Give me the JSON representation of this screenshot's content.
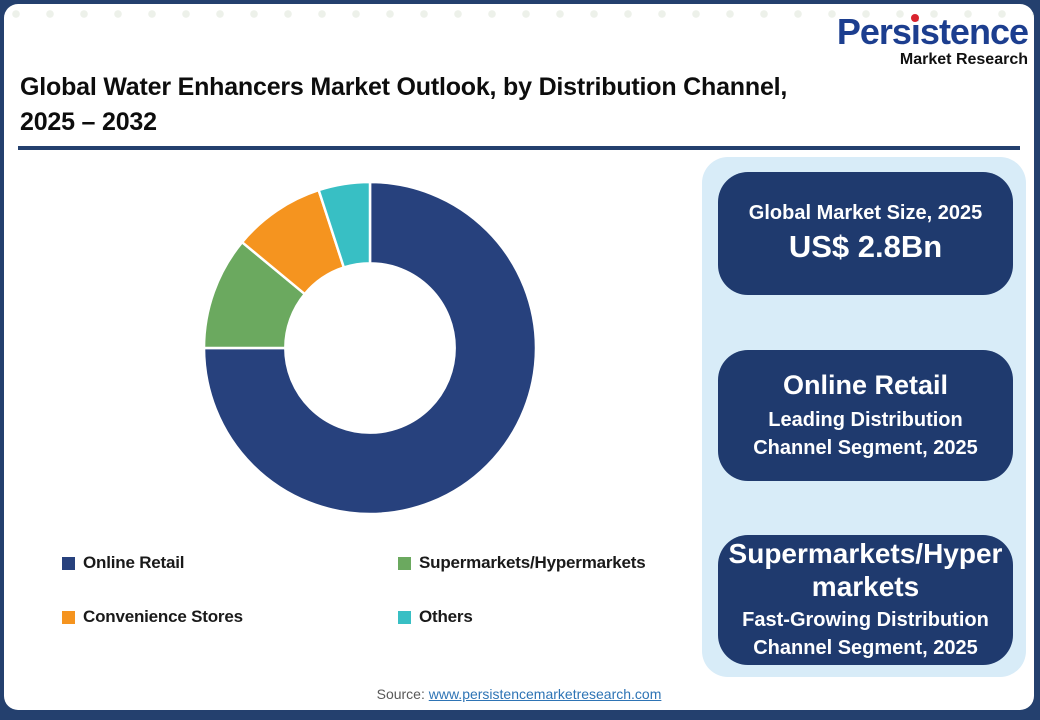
{
  "logo": {
    "part1": "Pers",
    "part2": "i",
    "part3": "stence",
    "subtitle": "Market Research"
  },
  "header": {
    "title_line1": "Global Water Enhancers Market Outlook, by Distribution Channel,",
    "title_line2": "2025 – 2032"
  },
  "chart_data": {
    "type": "pie",
    "subtype": "donut",
    "categories": [
      "Online Retail",
      "Supermarkets/Hypermarkets",
      "Convenience Stores",
      "Others"
    ],
    "values": [
      75,
      11,
      9,
      5
    ],
    "values_note": "percent share estimated from arc angles; no data labels shown",
    "colors": [
      "#27417D",
      "#6BA95F",
      "#F5941F",
      "#38BFC4"
    ],
    "start_angle_deg": 0,
    "direction": "clockwise",
    "inner_radius_ratio": 0.51,
    "legend_position": "below",
    "title": "Global Water Enhancers Market Outlook, by Distribution Channel, 2025 – 2032"
  },
  "sidebar": {
    "cards": [
      {
        "line1": "Global Market Size, 2025",
        "line2": "US$ 2.8Bn"
      },
      {
        "title": "Online Retail",
        "subtitle": "Leading Distribution Channel Segment, 2025"
      },
      {
        "title": "Supermarkets/Hypermarkets",
        "subtitle": "Fast-Growing Distribution Channel Segment, 2025"
      }
    ]
  },
  "footer": {
    "source_label": "Source:",
    "source_link": "www.persistencemarketresearch.com"
  },
  "colors": {
    "frame_navy": "#24406E",
    "card_navy": "#1F3A6E",
    "sidebar_light_blue": "#D8ECF8",
    "logo_blue": "#1C3E8F",
    "logo_dot_red": "#D9232E",
    "link_blue": "#2E74B5",
    "source_gray": "#595959",
    "title_black": "#0d0d0d"
  }
}
